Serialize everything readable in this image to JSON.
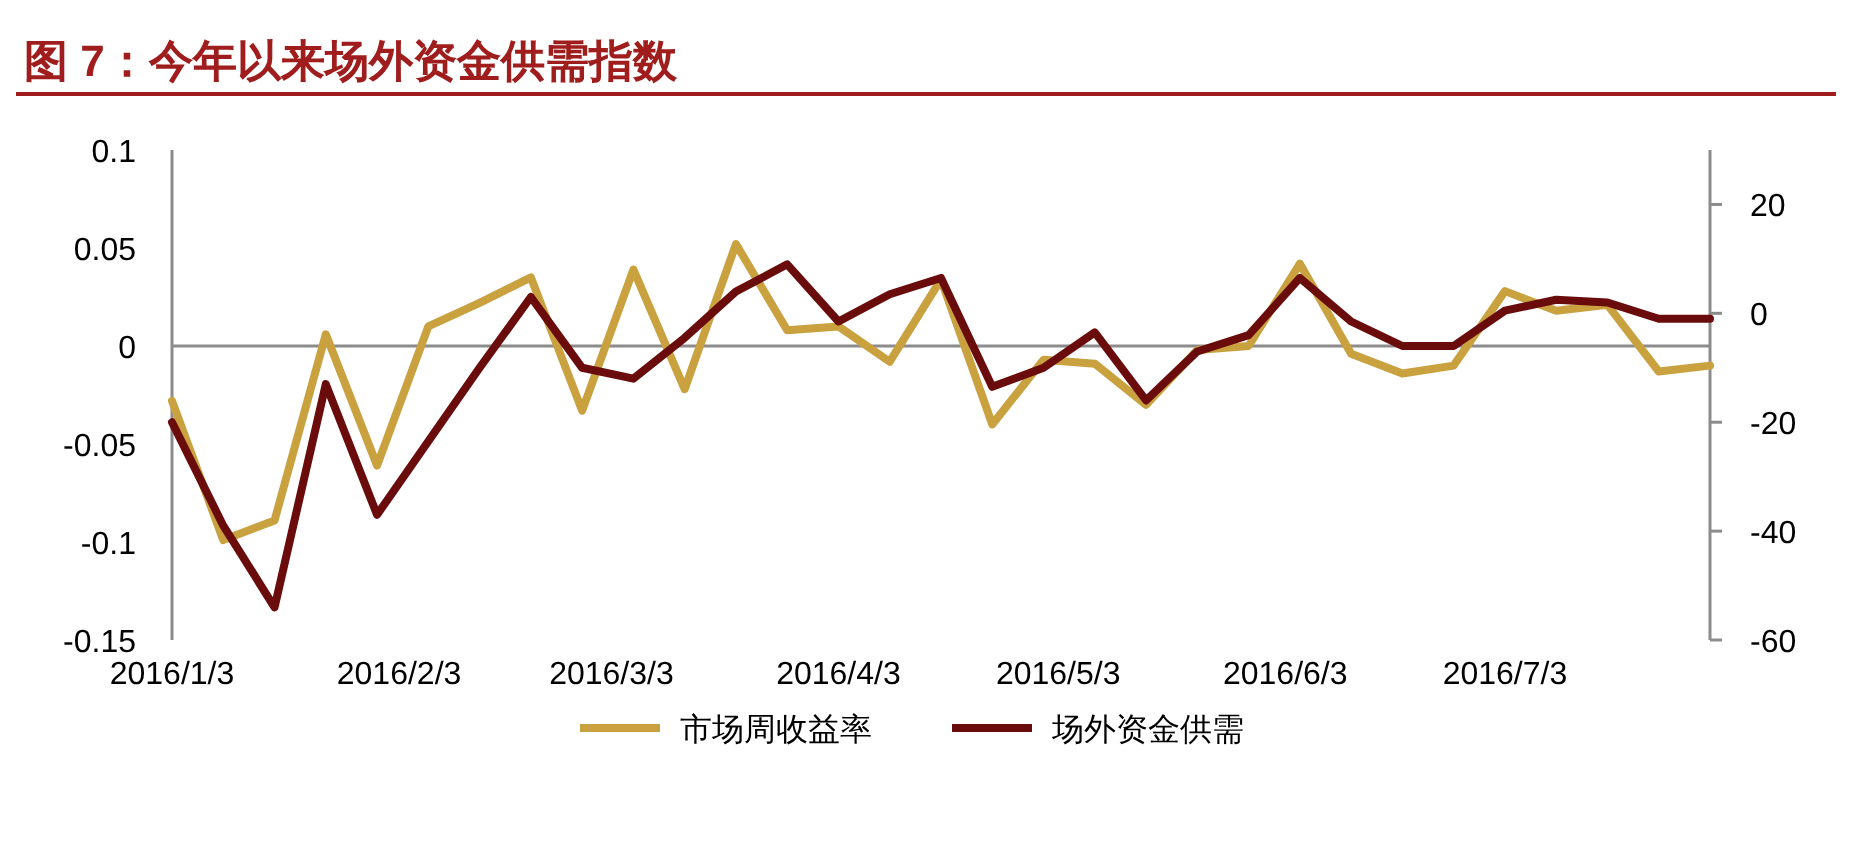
{
  "chart_data": {
    "type": "line",
    "title": "图 7：今年以来场外资金供需指数",
    "x": [
      "2016-01-03",
      "2016-01-10",
      "2016-01-17",
      "2016-01-24",
      "2016-01-31",
      "2016-02-07",
      "2016-02-14",
      "2016-02-21",
      "2016-02-28",
      "2016-03-06",
      "2016-03-13",
      "2016-03-20",
      "2016-03-27",
      "2016-04-03",
      "2016-04-10",
      "2016-04-17",
      "2016-04-24",
      "2016-05-01",
      "2016-05-08",
      "2016-05-15",
      "2016-05-22",
      "2016-05-29",
      "2016-06-05",
      "2016-06-12",
      "2016-06-19",
      "2016-06-26",
      "2016-07-03",
      "2016-07-10",
      "2016-07-17",
      "2016-07-24",
      "2016-07-31"
    ],
    "series": [
      {
        "name": "市场周收益率",
        "color": "#c9a23f",
        "values": [
          -0.028,
          -0.099,
          -0.089,
          0.006,
          -0.061,
          0.01,
          0.022,
          0.035,
          -0.033,
          0.039,
          -0.022,
          0.052,
          0.008,
          0.01,
          -0.008,
          0.034,
          -0.04,
          -0.007,
          -0.009,
          -0.03,
          -0.002,
          0.0,
          0.042,
          -0.004,
          -0.014,
          -0.01,
          0.028,
          0.018,
          0.021,
          -0.013,
          -0.01
        ]
      },
      {
        "name": "场外资金供需",
        "color": "#6b0c0c",
        "axis": "y2",
        "values": [
          -20,
          -39,
          -54,
          -13,
          -37,
          -23.5,
          -10,
          3,
          -10,
          -12,
          -4.5,
          4,
          9,
          -1.5,
          3.5,
          6.5,
          -13.5,
          -10,
          -3.5,
          -16,
          -7,
          -4,
          6.5,
          -1.5,
          -6,
          -6,
          0.5,
          2.5,
          2,
          -1,
          -1
        ]
      }
    ],
    "xlim": [
      "2016-01-03",
      "2016-07-31"
    ],
    "xticks": [
      {
        "value": "2016-01-03",
        "label": "2016/1/3"
      },
      {
        "value": "2016-02-03",
        "label": "2016/2/3"
      },
      {
        "value": "2016-03-03",
        "label": "2016/3/3"
      },
      {
        "value": "2016-04-03",
        "label": "2016/4/3"
      },
      {
        "value": "2016-05-03",
        "label": "2016/5/3"
      },
      {
        "value": "2016-06-03",
        "label": "2016/6/3"
      },
      {
        "value": "2016-07-03",
        "label": "2016/7/3"
      }
    ],
    "ylim": [
      -0.15,
      0.1
    ],
    "yticks": [
      -0.15,
      -0.1,
      -0.05,
      0,
      0.05,
      0.1
    ],
    "y2lim": [
      -60,
      30
    ],
    "y2ticks": [
      -60,
      -40,
      -20,
      0,
      20
    ],
    "ref_lines": [
      {
        "axis": "y",
        "value": 0,
        "color": "#8c8c8c"
      }
    ],
    "grid": false,
    "legend": "bottom",
    "marker": "none",
    "line_style": "solid"
  }
}
